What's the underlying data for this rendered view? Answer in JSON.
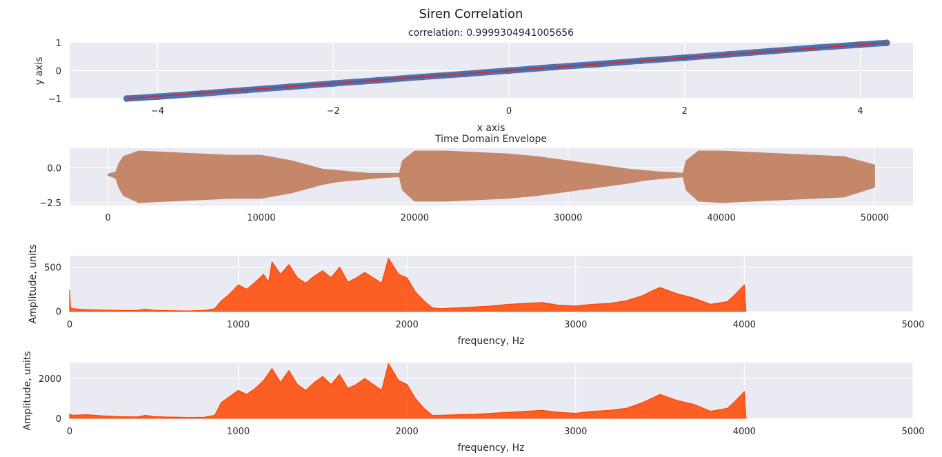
{
  "figure": {
    "title": "Siren Correlation"
  },
  "chart_data": [
    {
      "type": "scatter",
      "title": "correlation: 0.9999304941005656",
      "xlabel": "x axis",
      "ylabel": "y axis",
      "xlim": [
        -5.0,
        4.6
      ],
      "ylim": [
        -1.0,
        1.02
      ],
      "xticks": [
        -4,
        -2,
        0,
        2,
        4
      ],
      "yticks": [
        -1,
        0,
        1
      ],
      "grid": true,
      "point_color": "#4c72b0",
      "fit_color": "#d62728",
      "points": [
        [
          -4.35,
          -1.0
        ],
        [
          -4.0,
          -0.93
        ],
        [
          -3.5,
          -0.82
        ],
        [
          -3.0,
          -0.7
        ],
        [
          -2.5,
          -0.58
        ],
        [
          -2.0,
          -0.46
        ],
        [
          -1.5,
          -0.35
        ],
        [
          -1.0,
          -0.23
        ],
        [
          -0.5,
          -0.12
        ],
        [
          0.0,
          0.0
        ],
        [
          0.5,
          0.12
        ],
        [
          1.0,
          0.23
        ],
        [
          1.5,
          0.35
        ],
        [
          2.0,
          0.46
        ],
        [
          2.5,
          0.58
        ],
        [
          3.0,
          0.7
        ],
        [
          3.5,
          0.82
        ],
        [
          4.0,
          0.93
        ],
        [
          4.3,
          0.99
        ]
      ],
      "fit_line": [
        [
          -4.35,
          -1.0
        ],
        [
          4.3,
          0.99
        ]
      ]
    },
    {
      "type": "area",
      "title": "Time Domain Envelope",
      "xlabel": "",
      "ylabel": "",
      "xlim": [
        -2500,
        52500
      ],
      "ylim": [
        -2.7,
        1.4
      ],
      "xticks": [
        0,
        10000,
        20000,
        30000,
        40000,
        50000
      ],
      "yticks": [
        -2.5,
        0.0
      ],
      "grid": true,
      "color": "#c4876a",
      "x": [
        0,
        500,
        700,
        1000,
        2000,
        4000,
        6000,
        8000,
        10000,
        11000,
        12000,
        13000,
        14000,
        15000,
        16000,
        17000,
        18000,
        19000,
        19200,
        20000,
        22000,
        24000,
        26000,
        28000,
        30000,
        32000,
        34000,
        35000,
        36000,
        37000,
        37500,
        37700,
        38500,
        40000,
        42000,
        44000,
        46000,
        48000,
        50000
      ],
      "upper": [
        -0.45,
        -0.3,
        0.3,
        0.8,
        1.2,
        1.1,
        1.0,
        0.9,
        0.9,
        0.7,
        0.5,
        0.2,
        -0.1,
        -0.2,
        -0.3,
        -0.4,
        -0.4,
        -0.4,
        0.5,
        1.2,
        1.2,
        1.1,
        1.0,
        0.8,
        0.5,
        0.2,
        -0.1,
        -0.2,
        -0.3,
        -0.35,
        -0.4,
        0.5,
        1.2,
        1.2,
        1.1,
        1.0,
        0.9,
        0.8,
        0.2
      ],
      "lower": [
        -0.55,
        -0.75,
        -1.4,
        -2.0,
        -2.5,
        -2.4,
        -2.3,
        -2.2,
        -2.2,
        -2.0,
        -1.8,
        -1.5,
        -1.2,
        -1.0,
        -0.9,
        -0.8,
        -0.7,
        -0.65,
        -1.6,
        -2.4,
        -2.4,
        -2.3,
        -2.2,
        -2.0,
        -1.7,
        -1.4,
        -1.1,
        -0.9,
        -0.8,
        -0.7,
        -0.65,
        -1.6,
        -2.4,
        -2.5,
        -2.4,
        -2.3,
        -2.2,
        -2.1,
        -1.4
      ]
    },
    {
      "type": "line",
      "title": "",
      "xlabel": "frequency, Hz",
      "ylabel": "Amplitude, units",
      "xlim": [
        0,
        5000
      ],
      "ylim": [
        -10,
        630
      ],
      "xticks": [
        0,
        1000,
        2000,
        3000,
        4000,
        5000
      ],
      "yticks": [
        0,
        500
      ],
      "grid": true,
      "color": "#ff4500",
      "x": [
        0,
        5,
        20,
        100,
        200,
        300,
        400,
        450,
        500,
        600,
        700,
        800,
        860,
        900,
        950,
        1000,
        1050,
        1100,
        1150,
        1180,
        1200,
        1250,
        1300,
        1350,
        1400,
        1450,
        1500,
        1550,
        1600,
        1650,
        1700,
        1750,
        1800,
        1850,
        1890,
        1950,
        2000,
        2050,
        2100,
        2150,
        2200,
        2300,
        2400,
        2500,
        2600,
        2700,
        2800,
        2900,
        3000,
        3100,
        3200,
        3300,
        3400,
        3450,
        3500,
        3600,
        3700,
        3800,
        3900,
        3950,
        4000,
        4010
      ],
      "y": [
        240,
        40,
        30,
        20,
        15,
        10,
        10,
        25,
        12,
        8,
        5,
        10,
        30,
        120,
        200,
        300,
        250,
        330,
        420,
        330,
        560,
        420,
        530,
        380,
        320,
        400,
        460,
        380,
        500,
        330,
        380,
        440,
        380,
        320,
        600,
        420,
        380,
        220,
        120,
        40,
        30,
        40,
        50,
        60,
        80,
        90,
        100,
        70,
        60,
        80,
        90,
        120,
        180,
        230,
        270,
        200,
        150,
        80,
        110,
        200,
        300,
        0
      ]
    },
    {
      "type": "line",
      "title": "",
      "xlabel": "frequency, Hz",
      "ylabel": "Amplitude, units",
      "xlim": [
        0,
        5000
      ],
      "ylim": [
        -40,
        2800
      ],
      "xticks": [
        0,
        1000,
        2000,
        3000,
        4000,
        5000
      ],
      "yticks": [
        0,
        2000
      ],
      "grid": true,
      "color": "#ff4500",
      "x": [
        0,
        20,
        100,
        200,
        300,
        400,
        450,
        500,
        600,
        700,
        800,
        860,
        900,
        950,
        1000,
        1050,
        1100,
        1150,
        1200,
        1250,
        1300,
        1350,
        1400,
        1450,
        1500,
        1550,
        1600,
        1650,
        1700,
        1750,
        1800,
        1850,
        1890,
        1950,
        2000,
        2050,
        2100,
        2150,
        2200,
        2300,
        2400,
        2500,
        2600,
        2700,
        2800,
        2900,
        3000,
        3100,
        3200,
        3300,
        3400,
        3450,
        3500,
        3600,
        3700,
        3800,
        3900,
        3950,
        4000,
        4010
      ],
      "y": [
        200,
        150,
        180,
        120,
        80,
        70,
        150,
        80,
        60,
        40,
        50,
        150,
        800,
        1100,
        1400,
        1200,
        1500,
        1900,
        2500,
        1800,
        2400,
        1700,
        1400,
        1800,
        2100,
        1700,
        2200,
        1500,
        1700,
        2000,
        1700,
        1400,
        2750,
        1900,
        1700,
        1000,
        500,
        150,
        150,
        180,
        200,
        250,
        300,
        350,
        400,
        300,
        250,
        350,
        400,
        500,
        800,
        1000,
        1200,
        900,
        700,
        350,
        500,
        900,
        1350,
        0
      ]
    }
  ]
}
